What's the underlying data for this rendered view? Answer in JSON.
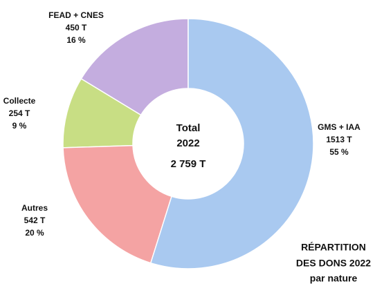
{
  "chart_data": {
    "type": "donut",
    "categories": [
      "GMS + IAA",
      "Autres",
      "Collecte",
      "FEAD + CNES"
    ],
    "values": [
      1513,
      542,
      254,
      450
    ],
    "value_labels": [
      "1513 T",
      "542 T",
      "254 T",
      "450 T"
    ],
    "shares": [
      55,
      20,
      9,
      16
    ],
    "share_labels": [
      "55 %",
      "20 %",
      "9 %",
      "16 %"
    ],
    "colors": [
      "#a9c9f0",
      "#f4a3a3",
      "#c8de84",
      "#c4addf"
    ],
    "center_text": [
      "Total",
      "2022",
      "2 759 T"
    ],
    "title": [
      "RÉPARTITION",
      "DES DONS 2022",
      "par nature"
    ]
  }
}
